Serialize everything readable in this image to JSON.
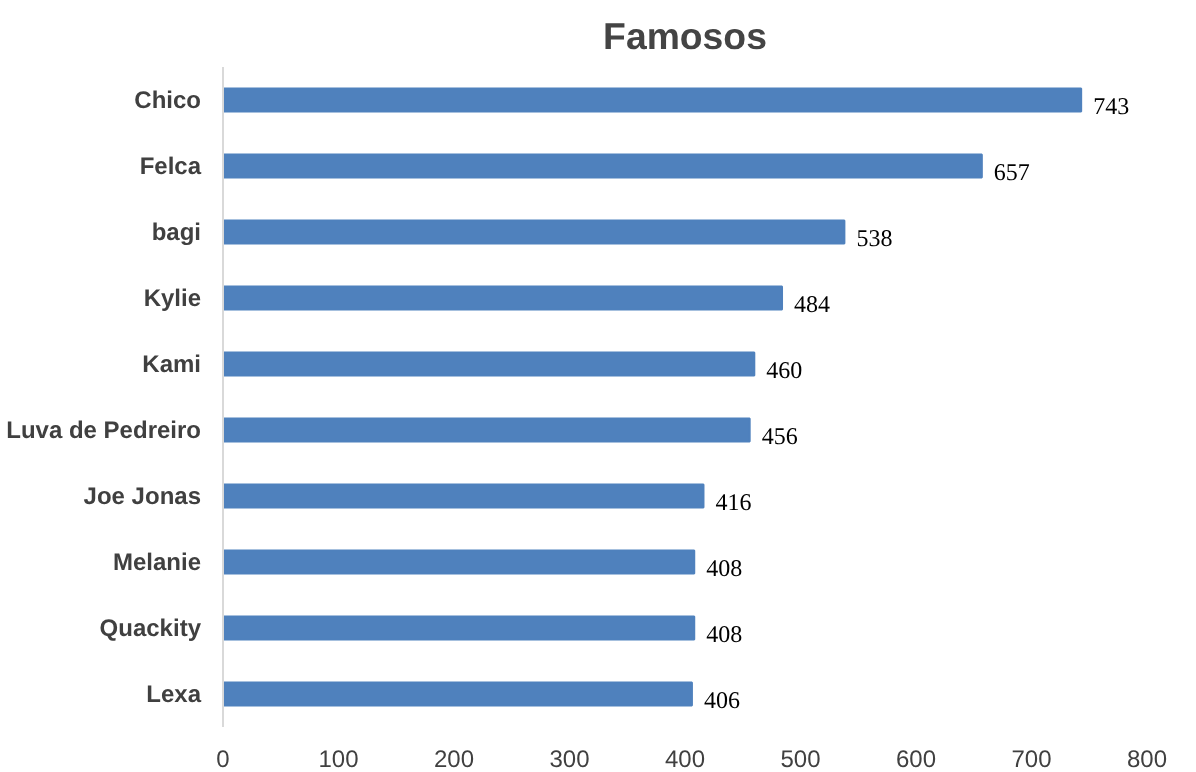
{
  "chart_data": {
    "type": "bar",
    "orientation": "horizontal",
    "title": "Famosos",
    "categories": [
      "Chico",
      "Felca",
      "bagi",
      "Kylie",
      "Kami",
      "Luva de Pedreiro",
      "Joe Jonas",
      "Melanie",
      "Quackity",
      "Lexa"
    ],
    "values": [
      743,
      657,
      538,
      484,
      460,
      456,
      416,
      408,
      408,
      406
    ],
    "color": "#4f81bd",
    "xlim": [
      0,
      800
    ],
    "xticks": [
      0,
      100,
      200,
      300,
      400,
      500,
      600,
      700,
      800
    ],
    "grid": false,
    "data_labels": true
  }
}
